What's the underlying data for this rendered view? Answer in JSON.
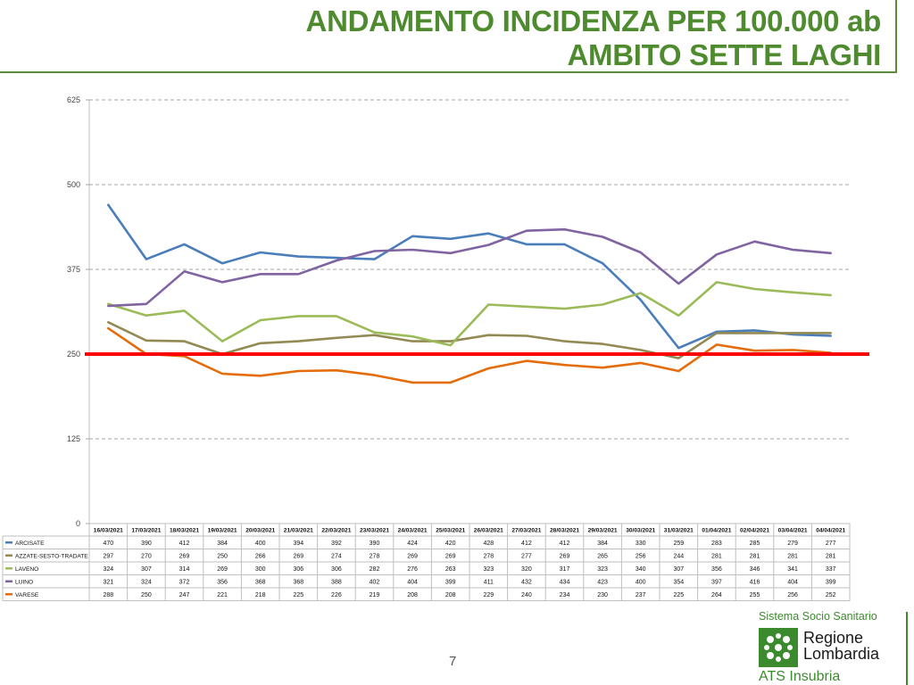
{
  "header": {
    "title_line1": "ANDAMENTO INCIDENZA PER 100.000 ab",
    "title_line2": "AMBITO SETTE LAGHI"
  },
  "chart_data": {
    "type": "line",
    "x": [
      "16/03/2021",
      "17/03/2021",
      "18/03/2021",
      "19/03/2021",
      "20/03/2021",
      "21/03/2021",
      "22/03/2021",
      "23/03/2021",
      "24/03/2021",
      "25/03/2021",
      "26/03/2021",
      "27/03/2021",
      "28/03/2021",
      "29/03/2021",
      "30/03/2021",
      "31/03/2021",
      "01/04/2021",
      "02/04/2021",
      "03/04/2021",
      "04/04/2021"
    ],
    "ylim": [
      0,
      625
    ],
    "yticks": [
      0,
      125,
      250,
      375,
      500,
      625
    ],
    "grid": true,
    "series": [
      {
        "name": "ARCISATE",
        "color": "#4a7ebb",
        "values": [
          470,
          390,
          412,
          384,
          400,
          394,
          392,
          390,
          424,
          420,
          428,
          412,
          412,
          384,
          330,
          259,
          283,
          285,
          279,
          277
        ]
      },
      {
        "name": "AZZATE-SESTO-TRADATE",
        "color": "#938953",
        "values": [
          297,
          270,
          269,
          250,
          266,
          269,
          274,
          278,
          269,
          269,
          278,
          277,
          269,
          265,
          256,
          244,
          281,
          281,
          281,
          281
        ]
      },
      {
        "name": "LAVENO",
        "color": "#9bbb59",
        "values": [
          324,
          307,
          314,
          269,
          300,
          306,
          306,
          282,
          276,
          263,
          323,
          320,
          317,
          323,
          340,
          307,
          356,
          346,
          341,
          337
        ]
      },
      {
        "name": "LUINO",
        "color": "#8064a2",
        "values": [
          321,
          324,
          372,
          356,
          368,
          368,
          388,
          402,
          404,
          399,
          411,
          432,
          434,
          423,
          400,
          354,
          397,
          416,
          404,
          399
        ]
      },
      {
        "name": "VARESE",
        "color": "#e46c0a",
        "values": [
          288,
          250,
          247,
          221,
          218,
          225,
          226,
          219,
          208,
          208,
          229,
          240,
          234,
          230,
          237,
          225,
          264,
          255,
          256,
          252
        ]
      }
    ],
    "reference_line": {
      "value": 250,
      "color": "#ff0000"
    }
  },
  "footer": {
    "page_number": "7",
    "brand_top": "Sistema Socio Sanitario",
    "brand_region_1": "Regione",
    "brand_region_2": "Lombardia",
    "brand_ats": "ATS Insubria"
  }
}
